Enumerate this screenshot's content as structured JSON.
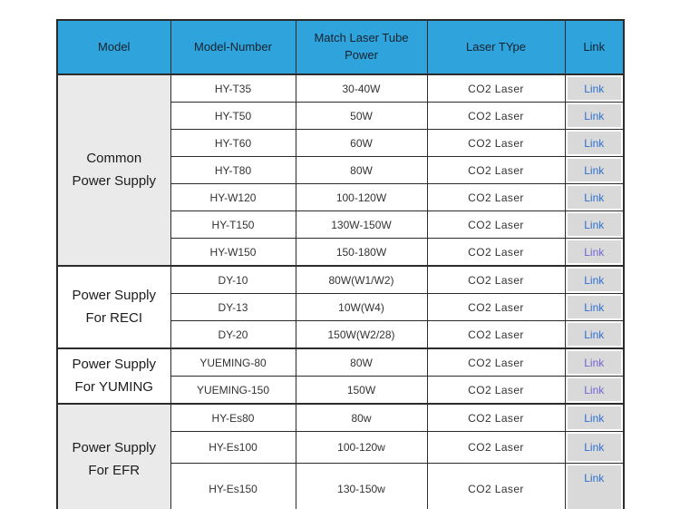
{
  "table": {
    "headers": [
      "Model",
      "Model-Number",
      "Match Laser Tube Power",
      "Laser TYpe",
      "Link"
    ],
    "groups": [
      {
        "line1": "Common",
        "line2": "Power Supply",
        "shaded": true,
        "row_span": 7
      },
      {
        "line1": "Power Supply",
        "line2": "For RECI",
        "shaded": false,
        "row_span": 3
      },
      {
        "line1": "Power Supply",
        "line2": "For YUMING",
        "shaded": false,
        "row_span": 2
      },
      {
        "line1": "Power Supply",
        "line2": "For EFR",
        "shaded": true,
        "row_span": 3
      }
    ],
    "rows": [
      {
        "model_number": "HY-T35",
        "power": "30-40W",
        "laser_type": "CO2 Laser",
        "link_label": "Link",
        "visited": false
      },
      {
        "model_number": "HY-T50",
        "power": "50W",
        "laser_type": "CO2 Laser",
        "link_label": "Link",
        "visited": false
      },
      {
        "model_number": "HY-T60",
        "power": "60W",
        "laser_type": "CO2 Laser",
        "link_label": "Link",
        "visited": false
      },
      {
        "model_number": "HY-T80",
        "power": "80W",
        "laser_type": "CO2 Laser",
        "link_label": "Link",
        "visited": false
      },
      {
        "model_number": "HY-W120",
        "power": "100-120W",
        "laser_type": "CO2 Laser",
        "link_label": "Link",
        "visited": false
      },
      {
        "model_number": "HY-T150",
        "power": "130W-150W",
        "laser_type": "CO2 Laser",
        "link_label": "Link",
        "visited": false
      },
      {
        "model_number": "HY-W150",
        "power": "150-180W",
        "laser_type": "CO2 Laser",
        "link_label": "Link",
        "visited": true
      },
      {
        "model_number": "DY-10",
        "power": "80W(W1/W2)",
        "laser_type": "CO2 Laser",
        "link_label": "Link",
        "visited": false
      },
      {
        "model_number": "DY-13",
        "power": "10W(W4)",
        "laser_type": "CO2 Laser",
        "link_label": "Link",
        "visited": false
      },
      {
        "model_number": "DY-20",
        "power": "150W(W2/28)",
        "laser_type": "CO2 Laser",
        "link_label": "Link",
        "visited": false
      },
      {
        "model_number": "YUEMING-80",
        "power": "80W",
        "laser_type": "CO2 Laser",
        "link_label": "Link",
        "visited": true
      },
      {
        "model_number": "YUEMING-150",
        "power": "150W",
        "laser_type": "CO2 Laser",
        "link_label": "Link",
        "visited": true
      },
      {
        "model_number": "HY-Es80",
        "power": "80w",
        "laser_type": "CO2 Laser",
        "link_label": "Link",
        "visited": false
      },
      {
        "model_number": "HY-Es100",
        "power": "100-120w",
        "laser_type": "CO2 Laser",
        "link_label": "Link",
        "visited": false
      },
      {
        "model_number": "HY-Es150",
        "power": "130-150w",
        "laser_type": "CO2 Laser",
        "link_label": "Link",
        "visited": false
      }
    ]
  },
  "colors": {
    "header_bg": "#2fa3dc",
    "header_text": "#16232e",
    "border": "#2b2b2b",
    "group_shaded_bg": "#ebeaea",
    "link_cell_bg": "#d9d9d9",
    "link_blue": "#2d6fd0",
    "link_visited": "#6f64d2",
    "body_text": "#333333"
  }
}
